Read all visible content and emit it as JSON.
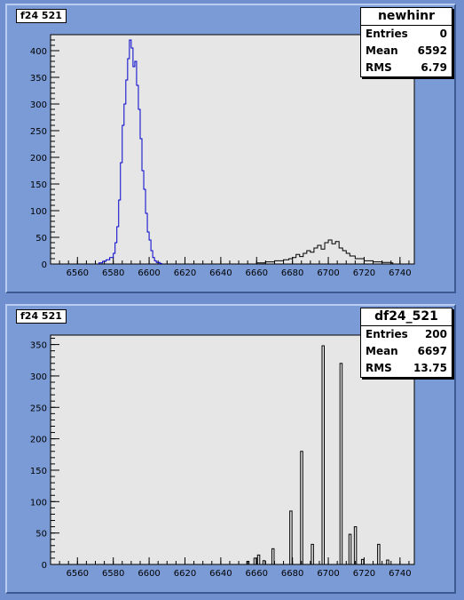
{
  "panels": [
    {
      "label": "f24 521",
      "stats": {
        "title": "newhinr",
        "rows": [
          {
            "name": "Entries",
            "value": "0"
          },
          {
            "name": "Mean",
            "value": "6592"
          },
          {
            "name": "RMS",
            "value": "6.79"
          }
        ]
      }
    },
    {
      "label": "f24 521",
      "stats": {
        "title": "df24_521",
        "rows": [
          {
            "name": "Entries",
            "value": "200"
          },
          {
            "name": "Mean",
            "value": "6697"
          },
          {
            "name": "RMS",
            "value": "13.75"
          }
        ]
      }
    }
  ],
  "chart_data": [
    {
      "type": "histogram",
      "xlim": [
        6545,
        6748
      ],
      "ylim": [
        0,
        430
      ],
      "x_ticks": [
        6560,
        6580,
        6600,
        6620,
        6640,
        6660,
        6680,
        6700,
        6720,
        6740
      ],
      "y_ticks": [
        0,
        50,
        100,
        150,
        200,
        250,
        300,
        350,
        400
      ],
      "series": [
        {
          "color": "#0000cc",
          "x": [
            6572,
            6574,
            6576,
            6578,
            6580,
            6581,
            6582,
            6583,
            6584,
            6585,
            6586,
            6587,
            6588,
            6589,
            6590,
            6591,
            6592,
            6593,
            6594,
            6595,
            6596,
            6597,
            6598,
            6599,
            6600,
            6601,
            6602,
            6603,
            6604,
            6606
          ],
          "y": [
            2,
            5,
            8,
            12,
            20,
            40,
            70,
            120,
            190,
            260,
            300,
            345,
            385,
            420,
            405,
            370,
            380,
            335,
            290,
            235,
            175,
            140,
            95,
            60,
            45,
            25,
            12,
            6,
            3,
            1
          ]
        },
        {
          "color": "#000000",
          "x": [
            6660,
            6665,
            6670,
            6675,
            6678,
            6680,
            6682,
            6684,
            6686,
            6688,
            6690,
            6692,
            6694,
            6696,
            6698,
            6700,
            6702,
            6704,
            6706,
            6708,
            6710,
            6712,
            6715,
            6720,
            6725,
            6730,
            6735
          ],
          "y": [
            2,
            4,
            6,
            8,
            10,
            12,
            18,
            14,
            20,
            25,
            22,
            30,
            35,
            28,
            40,
            45,
            38,
            42,
            30,
            25,
            20,
            15,
            10,
            6,
            4,
            3,
            2
          ]
        }
      ]
    },
    {
      "type": "bar",
      "xlim": [
        6545,
        6748
      ],
      "ylim": [
        0,
        365
      ],
      "x_ticks": [
        6560,
        6580,
        6600,
        6620,
        6640,
        6660,
        6680,
        6700,
        6720,
        6740
      ],
      "y_ticks": [
        0,
        50,
        100,
        150,
        200,
        250,
        300,
        350
      ],
      "bar_color": "#000000",
      "x": [
        6655,
        6659,
        6661,
        6664,
        6669,
        6679,
        6685,
        6691,
        6697,
        6707,
        6712,
        6715,
        6719,
        6728,
        6733
      ],
      "y": [
        5,
        10,
        15,
        6,
        25,
        85,
        180,
        32,
        348,
        320,
        48,
        60,
        8,
        32,
        7
      ]
    }
  ]
}
